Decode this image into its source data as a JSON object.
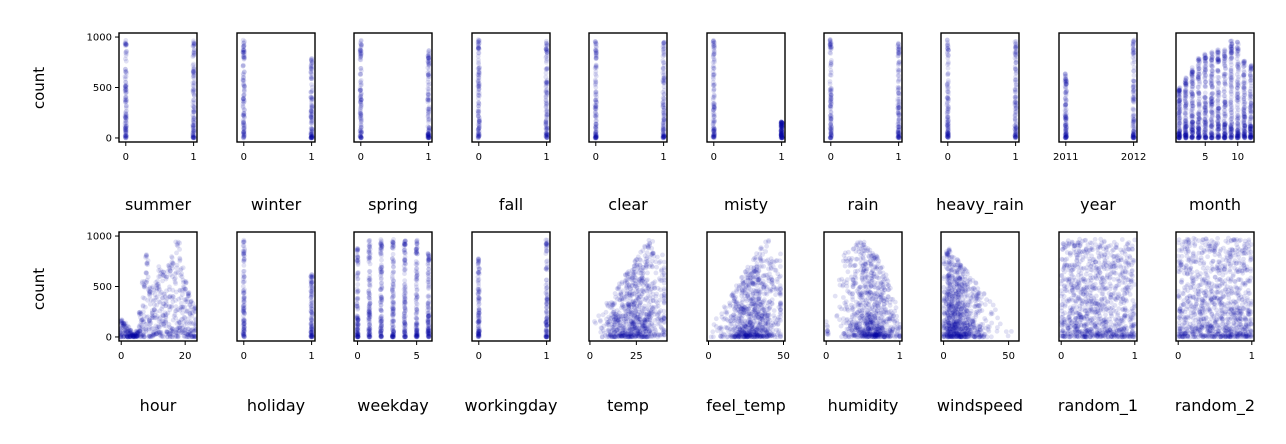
{
  "chart_data": {
    "type": "scatter",
    "marker_color": "#0a0aa8",
    "marker_alpha": 0.12,
    "ylabel": "count",
    "ylim": [
      0,
      1000
    ],
    "yticks": [
      0,
      500,
      1000
    ],
    "rows": [
      {
        "ylabel": "count",
        "panels": [
          {
            "xlabel": "summer",
            "xlim": [
              -0.1,
              1.05
            ],
            "xticks": [
              0,
              1
            ],
            "x_values": [
              0,
              1
            ],
            "y_max": [
              975,
              975
            ],
            "style": "discrete"
          },
          {
            "xlabel": "winter",
            "xlim": [
              -0.1,
              1.05
            ],
            "xticks": [
              0,
              1
            ],
            "x_values": [
              0,
              1
            ],
            "y_max": [
              975,
              800
            ],
            "style": "discrete"
          },
          {
            "xlabel": "spring",
            "xlim": [
              -0.1,
              1.05
            ],
            "xticks": [
              0,
              1
            ],
            "x_values": [
              0,
              1
            ],
            "y_max": [
              975,
              870
            ],
            "style": "discrete"
          },
          {
            "xlabel": "fall",
            "xlim": [
              -0.1,
              1.05
            ],
            "xticks": [
              0,
              1
            ],
            "x_values": [
              0,
              1
            ],
            "y_max": [
              975,
              975
            ],
            "style": "discrete"
          },
          {
            "xlabel": "clear",
            "xlim": [
              -0.1,
              1.05
            ],
            "xticks": [
              0,
              1
            ],
            "x_values": [
              0,
              1
            ],
            "y_max": [
              975,
              975
            ],
            "style": "discrete"
          },
          {
            "xlabel": "misty",
            "xlim": [
              -0.1,
              1.05
            ],
            "xticks": [
              0,
              1
            ],
            "x_values": [
              0,
              1
            ],
            "y_max": [
              975,
              160
            ],
            "style": "discrete"
          },
          {
            "xlabel": "rain",
            "xlim": [
              -0.1,
              1.05
            ],
            "xticks": [
              0,
              1
            ],
            "x_values": [
              0,
              1
            ],
            "y_max": [
              975,
              975
            ],
            "style": "discrete"
          },
          {
            "xlabel": "heavy_rain",
            "xlim": [
              -0.1,
              1.05
            ],
            "xticks": [
              0,
              1
            ],
            "x_values": [
              0,
              1
            ],
            "y_max": [
              975,
              960
            ],
            "style": "discrete"
          },
          {
            "xlabel": "year",
            "xlim": [
              2010.9,
              2012.05
            ],
            "xticks": [
              2011,
              2012
            ],
            "x_values": [
              2011,
              2012
            ],
            "y_max": [
              640,
              975
            ],
            "style": "discrete"
          },
          {
            "xlabel": "month",
            "xlim": [
              0.5,
              12.5
            ],
            "xticks": [
              5,
              10
            ],
            "x_values": [
              1,
              2,
              3,
              4,
              5,
              6,
              7,
              8,
              9,
              10,
              11,
              12
            ],
            "y_max": [
              500,
              600,
              700,
              800,
              850,
              870,
              880,
              890,
              975,
              960,
              770,
              730
            ],
            "style": "discrete"
          }
        ]
      },
      {
        "ylabel": "count",
        "panels": [
          {
            "xlabel": "hour",
            "xlim": [
              -0.7,
              23.7
            ],
            "xticks": [
              0,
              20
            ],
            "x_values": [
              0,
              1,
              2,
              3,
              4,
              5,
              6,
              7,
              8,
              9,
              10,
              11,
              12,
              13,
              14,
              15,
              16,
              17,
              18,
              19,
              20,
              21,
              22,
              23
            ],
            "y_max": [
              180,
              150,
              110,
              70,
              30,
              60,
              250,
              600,
              840,
              500,
              520,
              600,
              700,
              700,
              650,
              720,
              800,
              980,
              960,
              700,
              550,
              450,
              380,
              300
            ],
            "style": "hour"
          },
          {
            "xlabel": "holiday",
            "xlim": [
              -0.1,
              1.05
            ],
            "xticks": [
              0,
              1
            ],
            "x_values": [
              0,
              1
            ],
            "y_max": [
              975,
              620
            ],
            "style": "discrete"
          },
          {
            "xlabel": "weekday",
            "xlim": [
              -0.3,
              6.3
            ],
            "xticks": [
              0,
              5
            ],
            "x_values": [
              0,
              1,
              2,
              3,
              4,
              5,
              6
            ],
            "y_max": [
              880,
              960,
              970,
              975,
              975,
              960,
              830
            ],
            "style": "discrete"
          },
          {
            "xlabel": "workingday",
            "xlim": [
              -0.1,
              1.05
            ],
            "xticks": [
              0,
              1
            ],
            "x_values": [
              0,
              1
            ],
            "y_max": [
              780,
              975
            ],
            "style": "discrete"
          },
          {
            "xlabel": "temp",
            "xlim": [
              -0.5,
              41.5
            ],
            "xticks": [
              0,
              25
            ],
            "style": "temp"
          },
          {
            "xlabel": "feel_temp",
            "xlim": [
              -1,
              51
            ],
            "xticks": [
              0,
              50
            ],
            "style": "feel_temp"
          },
          {
            "xlabel": "humidity",
            "xlim": [
              -0.03,
              1.03
            ],
            "xticks": [
              0,
              1
            ],
            "style": "humidity"
          },
          {
            "xlabel": "windspeed",
            "xlim": [
              -2,
              58
            ],
            "xticks": [
              0,
              50
            ],
            "style": "windspeed"
          },
          {
            "xlabel": "random_1",
            "xlim": [
              -0.03,
              1.03
            ],
            "xticks": [
              0,
              1
            ],
            "style": "uniform"
          },
          {
            "xlabel": "random_2",
            "xlim": [
              -0.03,
              1.03
            ],
            "xticks": [
              0,
              1
            ],
            "style": "uniform"
          }
        ]
      }
    ]
  }
}
